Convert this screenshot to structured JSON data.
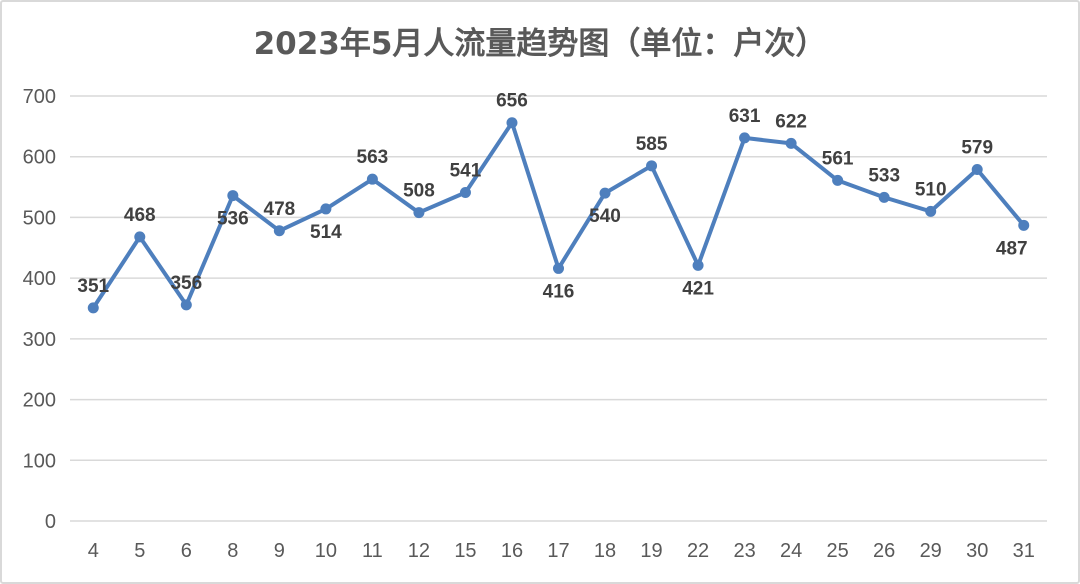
{
  "chart_data": {
    "type": "line",
    "title": "2023年5月人流量趋势图（单位：户次）",
    "xlabel": "",
    "ylabel": "",
    "categories": [
      "4",
      "5",
      "6",
      "8",
      "9",
      "10",
      "11",
      "12",
      "15",
      "16",
      "17",
      "18",
      "19",
      "22",
      "23",
      "24",
      "25",
      "26",
      "29",
      "30",
      "31"
    ],
    "series": [
      {
        "values": [
          351,
          468,
          356,
          536,
          478,
          514,
          563,
          508,
          541,
          656,
          416,
          540,
          585,
          421,
          631,
          622,
          561,
          533,
          510,
          579,
          487
        ]
      }
    ],
    "ylim": [
      0,
      700
    ],
    "yticks": [
      0,
      100,
      200,
      300,
      400,
      500,
      600,
      700
    ],
    "grid": true,
    "legend": "none",
    "line_color": "#4e7fbd",
    "grid_color": "#d9d9d9",
    "label_color": "#404040",
    "tick_color": "#595959"
  }
}
